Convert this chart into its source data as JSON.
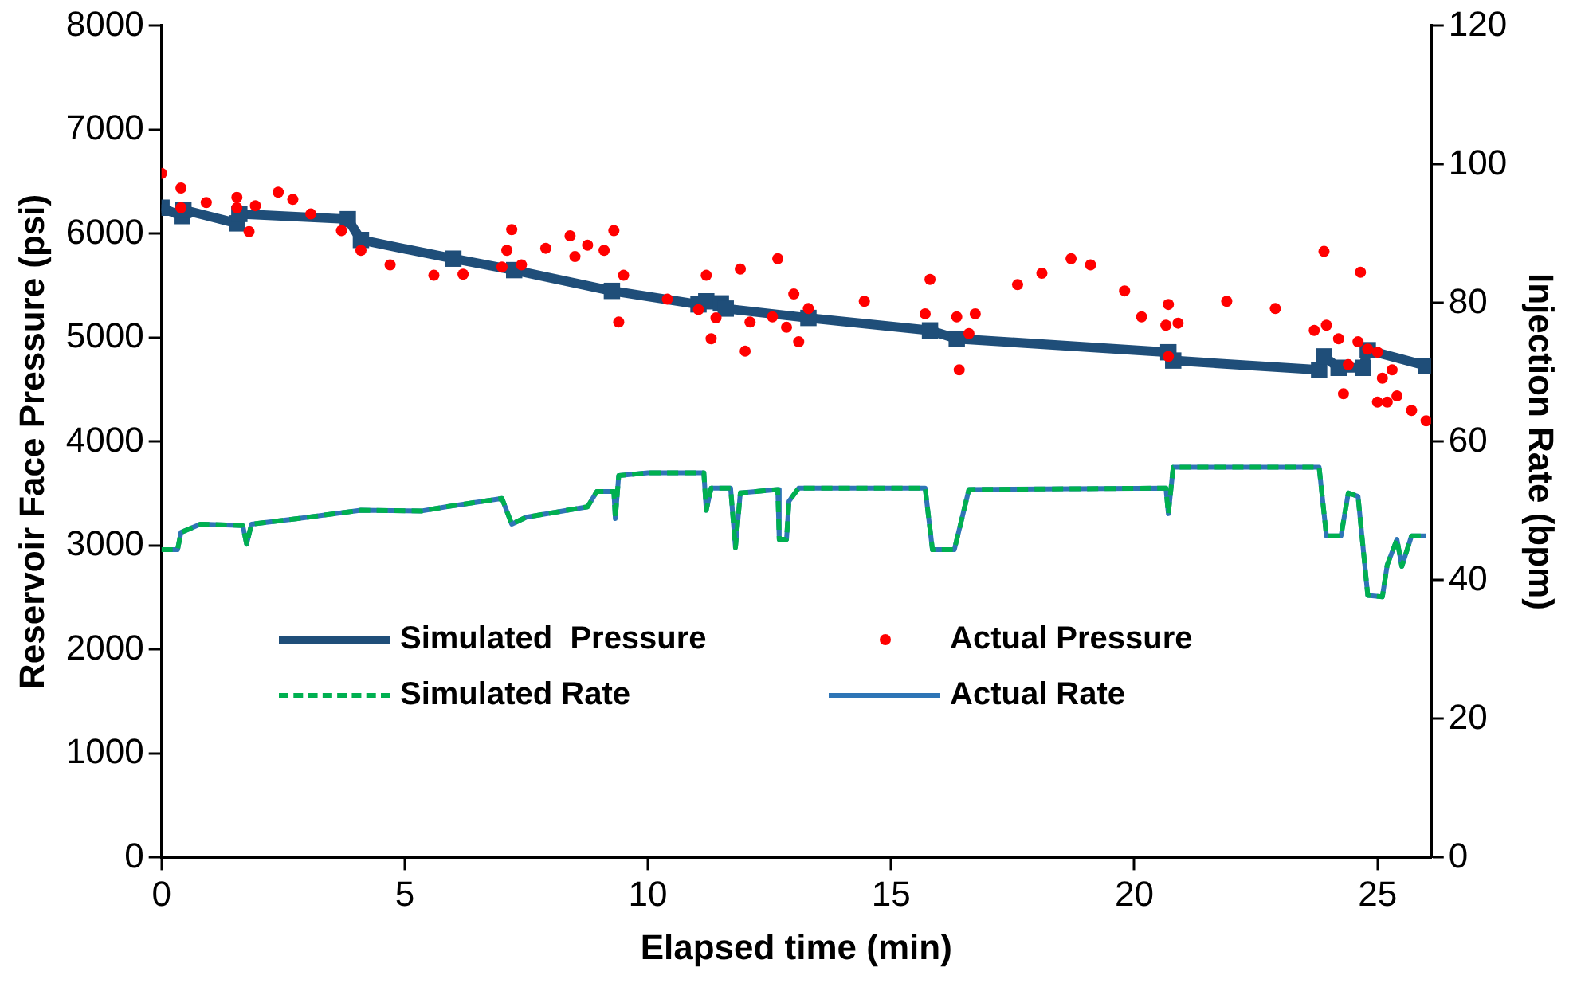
{
  "chart_data": {
    "type": "line",
    "xlabel": "Elapsed time (min)",
    "ylabel": "Reservoir Face Pressure (psi)",
    "y2label": "Injection Rate (bpm)",
    "xlim": [
      0,
      26.1
    ],
    "xticks": [
      0,
      5,
      10,
      15,
      20,
      25
    ],
    "ylim": [
      0,
      8000
    ],
    "yticks": [
      0,
      1000,
      2000,
      3000,
      4000,
      5000,
      6000,
      7000,
      8000
    ],
    "y2lim": [
      0,
      120
    ],
    "y2ticks": [
      0,
      20,
      40,
      60,
      80,
      100,
      120
    ],
    "grid": false,
    "legend": "bottom left",
    "series": [
      {
        "name": "Simulated  Pressure",
        "marker": "square",
        "color": "#1f4e79",
        "x": [
          0,
          0.42,
          0.45,
          1.55,
          1.6,
          3.83,
          4.1,
          6,
          7.25,
          9.26,
          11.04,
          11.2,
          11.5,
          11.6,
          13.3,
          15.8,
          16.35,
          20.7,
          20.8,
          23.8,
          23.9,
          24.2,
          24.7,
          24.8,
          26.0
        ],
        "values": [
          6250,
          6170,
          6230,
          6100,
          6190,
          6140,
          5940,
          5760,
          5650,
          5450,
          5320,
          5350,
          5330,
          5280,
          5190,
          5070,
          4990,
          4860,
          4780,
          4690,
          4820,
          4710,
          4710,
          4880,
          4730
        ]
      },
      {
        "name": "Actual Pressure",
        "type": "scatter",
        "marker": "circle",
        "color": "#ff0000",
        "x": [
          0,
          0.4,
          0.4,
          0.92,
          1.55,
          1.55,
          1.8,
          1.93,
          2.4,
          2.7,
          3.07,
          3.7,
          4.1,
          4.7,
          5.6,
          6.2,
          7.0,
          7.1,
          7.2,
          7.4,
          7.9,
          8.4,
          8.5,
          8.76,
          9.1,
          9.3,
          9.4,
          9.5,
          10.4,
          11.04,
          11.2,
          11.3,
          11.4,
          11.9,
          12.0,
          12.1,
          12.56,
          12.67,
          12.85,
          13.0,
          13.1,
          13.3,
          14.45,
          15.7,
          15.8,
          16.35,
          16.4,
          16.6,
          16.73,
          17.6,
          18.1,
          18.7,
          19.1,
          19.8,
          20.15,
          20.65,
          20.7,
          20.7,
          20.9,
          21.9,
          22.9,
          23.7,
          23.9,
          23.95,
          24.2,
          24.3,
          24.4,
          24.6,
          24.65,
          24.8,
          25.0,
          25.0,
          25.1,
          25.2,
          25.3,
          25.4,
          25.7,
          26.0
        ],
        "values": [
          6580,
          6440,
          6250,
          6300,
          6250,
          6350,
          6020,
          6270,
          6400,
          6330,
          6190,
          6030,
          5840,
          5700,
          5600,
          5610,
          5680,
          5840,
          6040,
          5700,
          5860,
          5980,
          5780,
          5890,
          5840,
          6030,
          5150,
          5600,
          5370,
          5270,
          5600,
          4990,
          5190,
          5660,
          4870,
          5150,
          5200,
          5760,
          5100,
          5420,
          4960,
          5280,
          5350,
          5230,
          5560,
          5200,
          4690,
          5040,
          5230,
          5510,
          5620,
          5760,
          5700,
          5450,
          5200,
          5120,
          5320,
          4820,
          5140,
          5350,
          5280,
          5070,
          5830,
          5120,
          4990,
          4460,
          4740,
          4960,
          5630,
          4890,
          4860,
          4380,
          4610,
          4380,
          4690,
          4440,
          4300,
          4200
        ]
      },
      {
        "name": "Simulated Rate",
        "axis": "y2",
        "line_style": "dashed",
        "marker": "none",
        "color": "#00b050",
        "x": [
          0,
          0.33,
          0.4,
          0.8,
          1.67,
          1.75,
          1.85,
          2.8,
          4.1,
          5.35,
          5.85,
          7.0,
          7.2,
          7.5,
          8.76,
          8.95,
          9.3,
          9.33,
          9.4,
          10.0,
          11.15,
          11.2,
          11.3,
          11.7,
          11.8,
          11.9,
          12.67,
          12.7,
          12.85,
          12.9,
          13.1,
          15.7,
          15.85,
          16.3,
          16.6,
          20.65,
          20.7,
          20.8,
          23.8,
          23.95,
          24.25,
          24.4,
          24.6,
          24.8,
          25.1,
          25.2,
          25.4,
          25.5,
          25.7,
          26.0
        ],
        "values": [
          44.4,
          44.4,
          46.9,
          48.1,
          47.9,
          45.2,
          48.1,
          48.9,
          50.1,
          50,
          50.6,
          51.8,
          48.1,
          49.1,
          50.6,
          52.8,
          52.8,
          48.9,
          55.1,
          55.5,
          55.5,
          50.1,
          53.3,
          53.3,
          44.7,
          52.6,
          53.1,
          45.9,
          45.9,
          51.4,
          53.3,
          53.3,
          44.4,
          44.4,
          53.1,
          53.3,
          49.6,
          56.3,
          56.3,
          46.4,
          46.4,
          52.6,
          52.1,
          37.8,
          37.6,
          42.2,
          45.9,
          42,
          46.4,
          46.4
        ]
      },
      {
        "name": "Actual Rate",
        "axis": "y2",
        "line_style": "solid",
        "marker": "none",
        "color": "#2e75b6",
        "x": [
          0,
          0.33,
          0.4,
          0.8,
          1.67,
          1.75,
          1.85,
          2.8,
          4.1,
          5.35,
          5.85,
          7.0,
          7.2,
          7.5,
          8.76,
          8.95,
          9.3,
          9.33,
          9.4,
          10.0,
          11.15,
          11.2,
          11.3,
          11.7,
          11.8,
          11.9,
          12.67,
          12.7,
          12.85,
          12.9,
          13.1,
          15.7,
          15.85,
          16.3,
          16.6,
          20.65,
          20.7,
          20.8,
          23.8,
          23.95,
          24.25,
          24.4,
          24.6,
          24.8,
          25.1,
          25.2,
          25.4,
          25.5,
          25.7,
          26.0
        ],
        "values": [
          44.4,
          44.4,
          46.9,
          48.1,
          47.9,
          45.2,
          48.1,
          48.9,
          50.1,
          50,
          50.6,
          51.8,
          48.1,
          49.1,
          50.6,
          52.8,
          52.8,
          48.9,
          55.1,
          55.5,
          55.5,
          50.1,
          53.3,
          53.3,
          44.7,
          52.6,
          53.1,
          45.9,
          45.9,
          51.4,
          53.3,
          53.3,
          44.4,
          44.4,
          53.1,
          53.3,
          49.6,
          56.3,
          56.3,
          46.4,
          46.4,
          52.6,
          52.1,
          37.8,
          37.6,
          42.2,
          45.9,
          42,
          46.4,
          46.4
        ]
      }
    ]
  }
}
